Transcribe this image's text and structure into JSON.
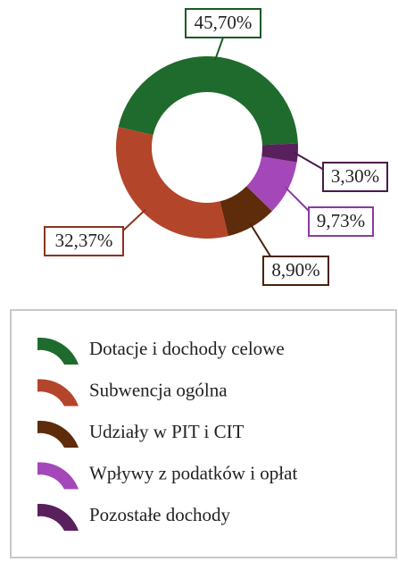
{
  "chart_data": {
    "type": "pie",
    "categories": [
      "Dotacje i dochody celowe",
      "Subwencja ogólna",
      "Udziały w PIT i CIT",
      "Wpływy z podatków i opłat",
      "Pozostałe dochody"
    ],
    "values": [
      45.7,
      32.37,
      8.9,
      9.73,
      3.3
    ],
    "value_labels": [
      "45,70%",
      "32,37%",
      "8,90%",
      "9,73%",
      "3,30%"
    ],
    "colors": [
      "#1f6b2d",
      "#b3452b",
      "#5e2b0b",
      "#a448b9",
      "#5a1f5d"
    ],
    "donut": true,
    "legend": "bottom"
  }
}
